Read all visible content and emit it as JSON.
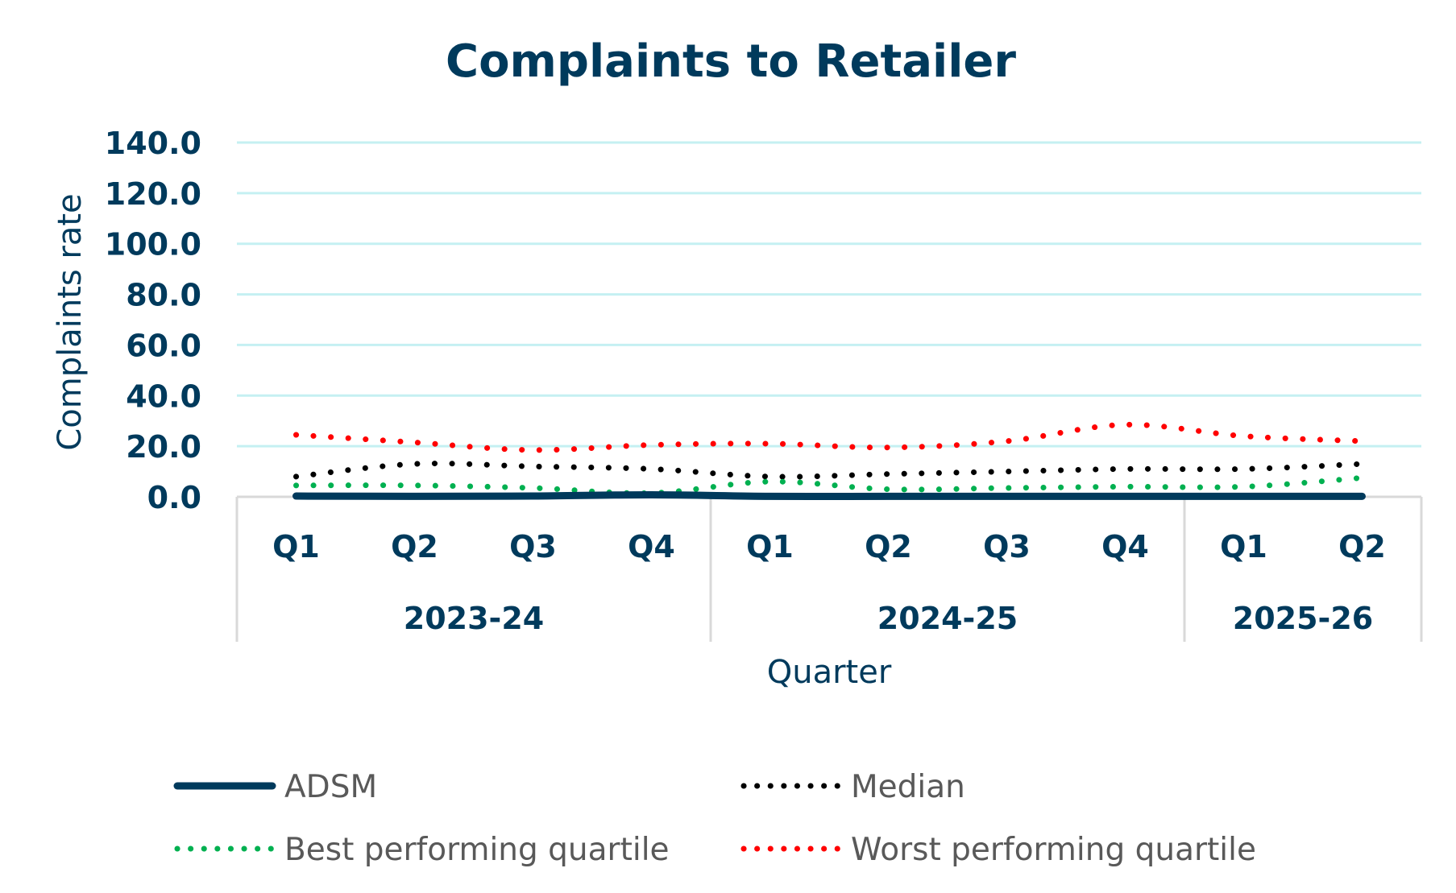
{
  "chart_data": {
    "type": "line",
    "title": "Complaints to Retailer",
    "xlabel": "Quarter",
    "ylabel": "Complaints rate",
    "ylim": [
      0,
      140
    ],
    "yticks": [
      "0.0",
      "20.0",
      "40.0",
      "60.0",
      "80.0",
      "100.0",
      "120.0",
      "140.0"
    ],
    "grid": true,
    "legend_position": "bottom",
    "categories": [
      "Q1",
      "Q2",
      "Q3",
      "Q4",
      "Q1",
      "Q2",
      "Q3",
      "Q4",
      "Q1",
      "Q2"
    ],
    "groups": [
      {
        "label": "2023-24",
        "count": 4
      },
      {
        "label": "2024-25",
        "count": 4
      },
      {
        "label": "2025-26",
        "count": 2
      }
    ],
    "series": [
      {
        "name": "ADSM",
        "color": "#003a5c",
        "style": "solid",
        "values": [
          0.3,
          0.2,
          0.3,
          0.8,
          0.2,
          0.2,
          0.2,
          0.2,
          0.2,
          0.2
        ]
      },
      {
        "name": "Median",
        "color": "#000000",
        "style": "dotted",
        "values": [
          8,
          13,
          12,
          11,
          8,
          9,
          10,
          11,
          11,
          13
        ]
      },
      {
        "name": "Best performing quartile",
        "color": "#00b050",
        "style": "dotted",
        "values": [
          4.5,
          4.5,
          3.5,
          1.5,
          6,
          3,
          3.5,
          4,
          4,
          7.5
        ]
      },
      {
        "name": "Worst performing quartile",
        "color": "#ff0000",
        "style": "dotted",
        "values": [
          24.5,
          21.5,
          18.5,
          20.5,
          21,
          19.5,
          22,
          28.5,
          24,
          22
        ]
      }
    ]
  }
}
